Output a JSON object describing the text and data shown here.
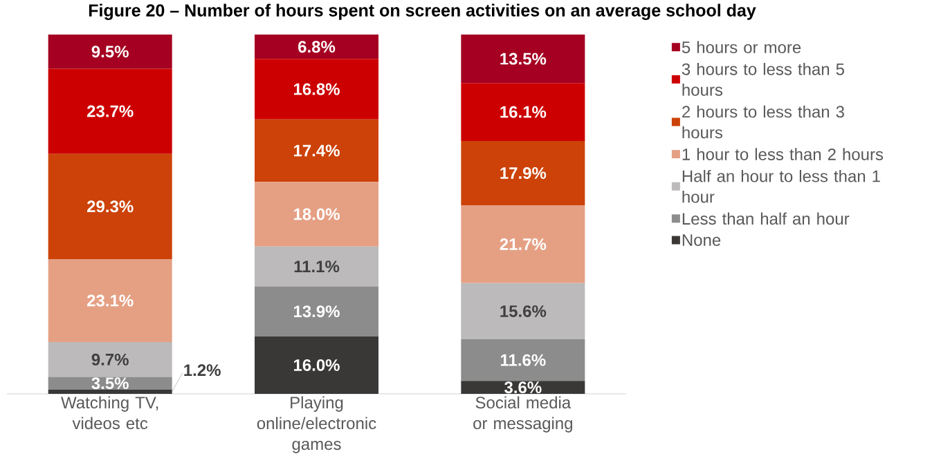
{
  "chart_data": {
    "type": "bar",
    "stacked": true,
    "title": "Figure 20 – Number of hours spent on screen activities on an average school day",
    "categories": [
      "Watching TV, videos etc",
      "Playing online/electronic games",
      "Social media or messaging"
    ],
    "ylim": [
      0,
      100
    ],
    "tick_labels": "x",
    "legend": "right",
    "series": [
      {
        "name": "None",
        "color": "#3a3836",
        "values": [
          1.2,
          16.0,
          3.6
        ],
        "value_labels": [
          "1.2%",
          "16.0%",
          "3.6%"
        ]
      },
      {
        "name": "Less than half an hour",
        "color": "#8c8c8c",
        "values": [
          3.5,
          13.9,
          11.6
        ],
        "value_labels": [
          "3.5%",
          "13.9%",
          "11.6%"
        ]
      },
      {
        "name": "Half an hour to less than 1 hour",
        "color": "#bcbaba",
        "values": [
          9.7,
          11.1,
          15.6
        ],
        "value_labels": [
          "9.7%",
          "11.1%",
          "15.6%"
        ]
      },
      {
        "name": "1 hour to less than 2 hours",
        "color": "#e5a084",
        "values": [
          23.1,
          18.0,
          21.7
        ],
        "value_labels": [
          "23.1%",
          "18.0%",
          "21.7%"
        ]
      },
      {
        "name": "2 hours to less than 3 hours",
        "color": "#cc4208",
        "values": [
          29.3,
          17.4,
          17.9
        ],
        "value_labels": [
          "29.3%",
          "17.4%",
          "17.9%"
        ]
      },
      {
        "name": "3 hours to less than 5 hours",
        "color": "#cc0000",
        "values": [
          23.7,
          16.8,
          16.1
        ],
        "value_labels": [
          "23.7%",
          "16.8%",
          "16.1%"
        ]
      },
      {
        "name": "5 hours or more",
        "color": "#a50021",
        "values": [
          9.5,
          6.8,
          13.5
        ],
        "value_labels": [
          "9.5%",
          "6.8%",
          "13.5%"
        ]
      }
    ]
  }
}
